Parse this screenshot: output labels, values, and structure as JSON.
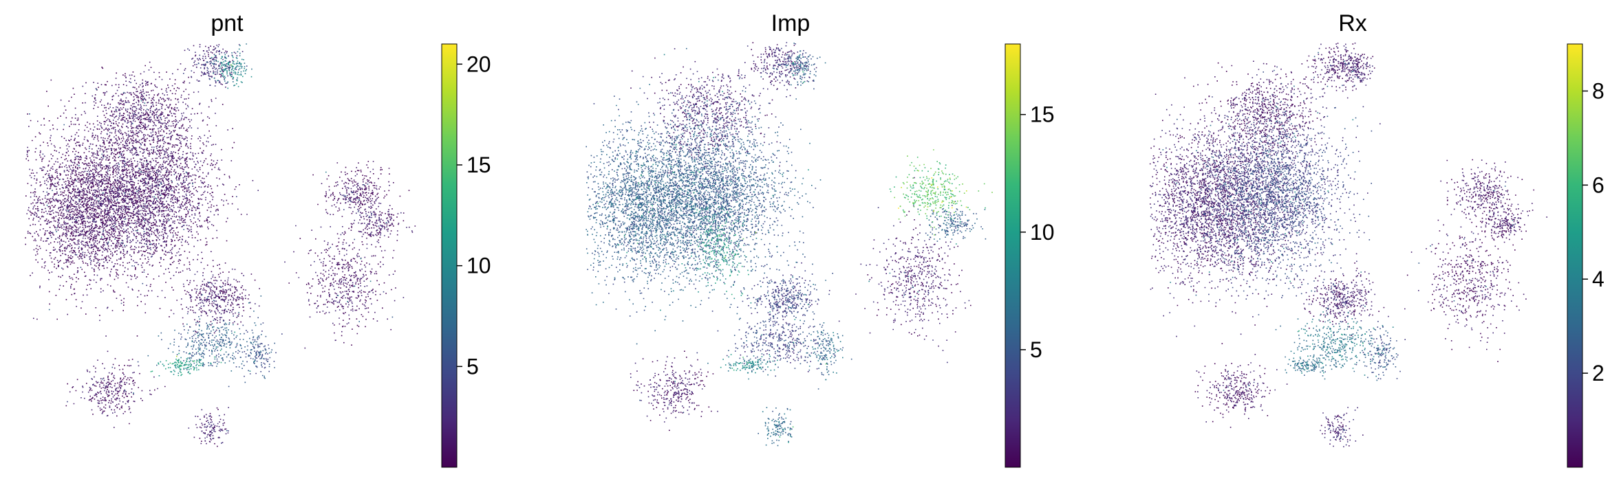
{
  "colormap": "viridis",
  "colormap_stops": [
    "#440154",
    "#482878",
    "#3e4989",
    "#31688e",
    "#26828e",
    "#1f9e89",
    "#35b779",
    "#6ece58",
    "#b5de2b",
    "#fde725"
  ],
  "chart_data": [
    {
      "type": "scatter",
      "title": "pnt",
      "colorbar": {
        "range": [
          0,
          21
        ],
        "ticks": [
          5,
          10,
          15,
          20
        ],
        "tick_labels": [
          "5",
          "10",
          "15",
          "20"
        ]
      },
      "clusters": [
        {
          "x": 0.16,
          "y": 0.4,
          "sx": 0.08,
          "sy": 0.09,
          "n": 2600,
          "level": 0.03
        },
        {
          "x": 0.32,
          "y": 0.37,
          "sx": 0.08,
          "sy": 0.09,
          "n": 2600,
          "level": 0.04
        },
        {
          "x": 0.3,
          "y": 0.18,
          "sx": 0.06,
          "sy": 0.05,
          "n": 700,
          "level": 0.05
        },
        {
          "x": 0.47,
          "y": 0.06,
          "sx": 0.03,
          "sy": 0.03,
          "n": 250,
          "level": 0.12
        },
        {
          "x": 0.52,
          "y": 0.07,
          "sx": 0.02,
          "sy": 0.02,
          "n": 150,
          "level": 0.45
        },
        {
          "x": 0.83,
          "y": 0.37,
          "sx": 0.04,
          "sy": 0.03,
          "n": 320,
          "level": 0.04
        },
        {
          "x": 0.8,
          "y": 0.58,
          "sx": 0.05,
          "sy": 0.06,
          "n": 500,
          "level": 0.05
        },
        {
          "x": 0.88,
          "y": 0.44,
          "sx": 0.03,
          "sy": 0.02,
          "n": 180,
          "level": 0.06
        },
        {
          "x": 0.48,
          "y": 0.62,
          "sx": 0.04,
          "sy": 0.03,
          "n": 400,
          "level": 0.06
        },
        {
          "x": 0.47,
          "y": 0.73,
          "sx": 0.05,
          "sy": 0.03,
          "n": 350,
          "level": 0.3
        },
        {
          "x": 0.4,
          "y": 0.78,
          "sx": 0.03,
          "sy": 0.01,
          "n": 120,
          "level": 0.55
        },
        {
          "x": 0.58,
          "y": 0.75,
          "sx": 0.02,
          "sy": 0.03,
          "n": 150,
          "level": 0.25
        },
        {
          "x": 0.22,
          "y": 0.84,
          "sx": 0.04,
          "sy": 0.03,
          "n": 300,
          "level": 0.04
        },
        {
          "x": 0.47,
          "y": 0.93,
          "sx": 0.02,
          "sy": 0.02,
          "n": 120,
          "level": 0.08
        }
      ]
    },
    {
      "type": "scatter",
      "title": "Imp",
      "colorbar": {
        "range": [
          0,
          18
        ],
        "ticks": [
          5,
          10,
          15
        ],
        "tick_labels": [
          "5",
          "10",
          "15"
        ]
      },
      "clusters": [
        {
          "x": 0.16,
          "y": 0.4,
          "sx": 0.08,
          "sy": 0.09,
          "n": 2600,
          "level": 0.3
        },
        {
          "x": 0.32,
          "y": 0.37,
          "sx": 0.08,
          "sy": 0.09,
          "n": 2600,
          "level": 0.28
        },
        {
          "x": 0.3,
          "y": 0.18,
          "sx": 0.06,
          "sy": 0.05,
          "n": 700,
          "level": 0.1
        },
        {
          "x": 0.47,
          "y": 0.06,
          "sx": 0.03,
          "sy": 0.03,
          "n": 250,
          "level": 0.1
        },
        {
          "x": 0.52,
          "y": 0.07,
          "sx": 0.02,
          "sy": 0.02,
          "n": 150,
          "level": 0.3
        },
        {
          "x": 0.83,
          "y": 0.37,
          "sx": 0.04,
          "sy": 0.03,
          "n": 320,
          "level": 0.72
        },
        {
          "x": 0.8,
          "y": 0.58,
          "sx": 0.05,
          "sy": 0.06,
          "n": 500,
          "level": 0.08
        },
        {
          "x": 0.88,
          "y": 0.44,
          "sx": 0.03,
          "sy": 0.02,
          "n": 180,
          "level": 0.3
        },
        {
          "x": 0.48,
          "y": 0.62,
          "sx": 0.04,
          "sy": 0.03,
          "n": 400,
          "level": 0.2
        },
        {
          "x": 0.47,
          "y": 0.73,
          "sx": 0.05,
          "sy": 0.03,
          "n": 350,
          "level": 0.2
        },
        {
          "x": 0.4,
          "y": 0.78,
          "sx": 0.03,
          "sy": 0.01,
          "n": 120,
          "level": 0.45
        },
        {
          "x": 0.58,
          "y": 0.75,
          "sx": 0.02,
          "sy": 0.03,
          "n": 150,
          "level": 0.35
        },
        {
          "x": 0.22,
          "y": 0.84,
          "sx": 0.04,
          "sy": 0.03,
          "n": 300,
          "level": 0.06
        },
        {
          "x": 0.47,
          "y": 0.93,
          "sx": 0.02,
          "sy": 0.02,
          "n": 120,
          "level": 0.35
        },
        {
          "x": 0.33,
          "y": 0.5,
          "sx": 0.03,
          "sy": 0.05,
          "n": 250,
          "level": 0.55
        }
      ]
    },
    {
      "type": "scatter",
      "title": "Rx",
      "colorbar": {
        "range": [
          0,
          9
        ],
        "ticks": [
          2,
          4,
          6,
          8
        ],
        "tick_labels": [
          "2",
          "4",
          "6",
          "8"
        ]
      },
      "clusters": [
        {
          "x": 0.16,
          "y": 0.4,
          "sx": 0.08,
          "sy": 0.09,
          "n": 2600,
          "level": 0.08
        },
        {
          "x": 0.32,
          "y": 0.37,
          "sx": 0.08,
          "sy": 0.09,
          "n": 2600,
          "level": 0.2
        },
        {
          "x": 0.3,
          "y": 0.18,
          "sx": 0.06,
          "sy": 0.05,
          "n": 700,
          "level": 0.04
        },
        {
          "x": 0.47,
          "y": 0.06,
          "sx": 0.03,
          "sy": 0.03,
          "n": 250,
          "level": 0.06
        },
        {
          "x": 0.52,
          "y": 0.07,
          "sx": 0.02,
          "sy": 0.02,
          "n": 150,
          "level": 0.08
        },
        {
          "x": 0.83,
          "y": 0.37,
          "sx": 0.04,
          "sy": 0.03,
          "n": 320,
          "level": 0.05
        },
        {
          "x": 0.8,
          "y": 0.58,
          "sx": 0.05,
          "sy": 0.06,
          "n": 500,
          "level": 0.04
        },
        {
          "x": 0.88,
          "y": 0.44,
          "sx": 0.03,
          "sy": 0.02,
          "n": 180,
          "level": 0.05
        },
        {
          "x": 0.48,
          "y": 0.62,
          "sx": 0.04,
          "sy": 0.03,
          "n": 400,
          "level": 0.08
        },
        {
          "x": 0.47,
          "y": 0.73,
          "sx": 0.05,
          "sy": 0.03,
          "n": 350,
          "level": 0.4
        },
        {
          "x": 0.4,
          "y": 0.78,
          "sx": 0.03,
          "sy": 0.01,
          "n": 120,
          "level": 0.35
        },
        {
          "x": 0.58,
          "y": 0.75,
          "sx": 0.02,
          "sy": 0.03,
          "n": 150,
          "level": 0.25
        },
        {
          "x": 0.22,
          "y": 0.84,
          "sx": 0.04,
          "sy": 0.03,
          "n": 300,
          "level": 0.05
        },
        {
          "x": 0.47,
          "y": 0.93,
          "sx": 0.02,
          "sy": 0.02,
          "n": 120,
          "level": 0.1
        }
      ]
    }
  ]
}
